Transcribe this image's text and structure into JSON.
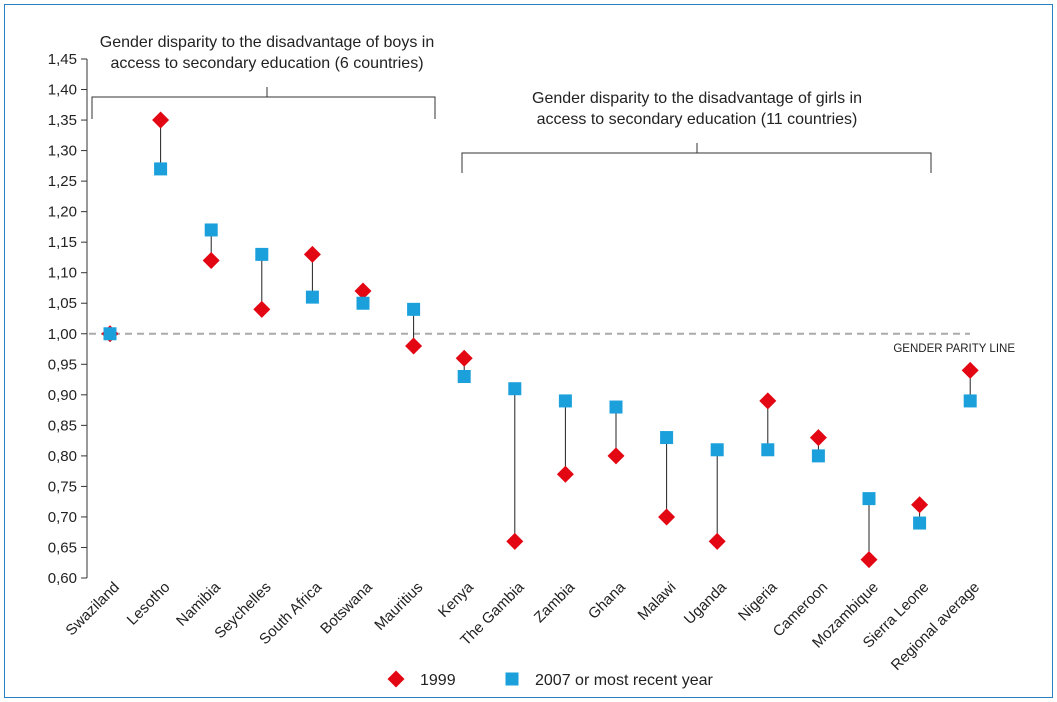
{
  "chart_data": {
    "type": "scatter",
    "title": "",
    "xlabel": "",
    "ylabel": "",
    "ylim": [
      0.6,
      1.45
    ],
    "ytick_labels": [
      "0,60",
      "0,65",
      "0,70",
      "0,75",
      "0,80",
      "0,85",
      "0,90",
      "0,95",
      "1,00",
      "1,05",
      "1,10",
      "1,15",
      "1,20",
      "1,25",
      "1,30",
      "1,35",
      "1,40",
      "1,45"
    ],
    "categories": [
      "Swaziland",
      "Lesotho",
      "Namibia",
      "Seychelles",
      "South Africa",
      "Botswana",
      "Mauritius",
      "Kenya",
      "The Gambia",
      "Zambia",
      "Ghana",
      "Malawi",
      "Uganda",
      "Nigeria",
      "Cameroon",
      "Mozambique",
      "Sierra Leone",
      "Regional average"
    ],
    "series": [
      {
        "name": "1999",
        "color": "#e30613",
        "marker": "diamond",
        "values": [
          1.0,
          1.35,
          1.12,
          1.04,
          1.13,
          1.07,
          0.98,
          0.96,
          0.66,
          0.77,
          0.8,
          0.7,
          0.66,
          0.89,
          0.83,
          0.63,
          0.72,
          0.94
        ]
      },
      {
        "name": "2007 or most recent year",
        "color": "#1ba0dc",
        "marker": "square",
        "values": [
          1.0,
          1.27,
          1.17,
          1.13,
          1.06,
          1.05,
          1.04,
          0.93,
          0.91,
          0.89,
          0.88,
          0.83,
          0.81,
          0.81,
          0.8,
          0.73,
          0.69,
          0.89
        ]
      }
    ],
    "reference_line": {
      "value": 1.0,
      "label": "GENDER PARITY LINE",
      "color": "#aaaaaa"
    },
    "annotations": [
      {
        "label_lines": [
          "Gender disparity to the disadvantage of boys in",
          "access to secondary education (6 countries)"
        ],
        "from": 0,
        "to": 6
      },
      {
        "label_lines": [
          "Gender disparity to the disadvantage of girls in",
          "access to secondary education (11 countries)"
        ],
        "from": 7,
        "to": 16
      }
    ],
    "grid": false,
    "legend_position": "bottom-center"
  }
}
